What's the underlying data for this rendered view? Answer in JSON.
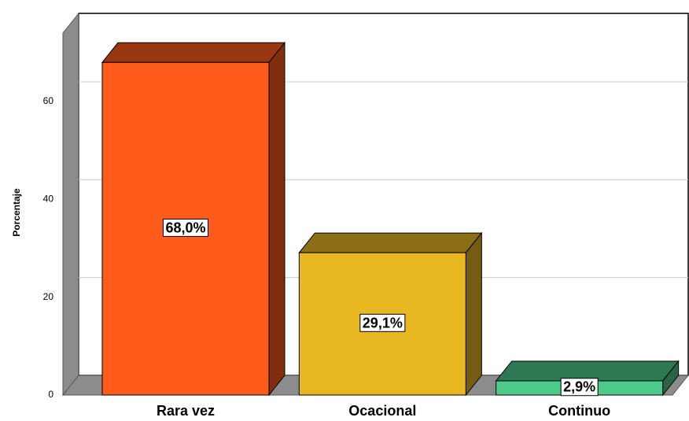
{
  "chart_data": {
    "type": "bar3d",
    "categories": [
      "Rara vez",
      "Ocacional",
      "Continuo"
    ],
    "values": [
      68.0,
      29.1,
      2.9
    ],
    "value_labels": [
      "68,0%",
      "29,1%",
      "2,9%"
    ],
    "colors": [
      "#ff5b1a",
      "#e8b823",
      "#4dc98b"
    ],
    "y_label": "Porcentaje",
    "ylim": [
      0,
      74
    ],
    "yticks": [
      0,
      20,
      40,
      60
    ],
    "grid": true
  }
}
